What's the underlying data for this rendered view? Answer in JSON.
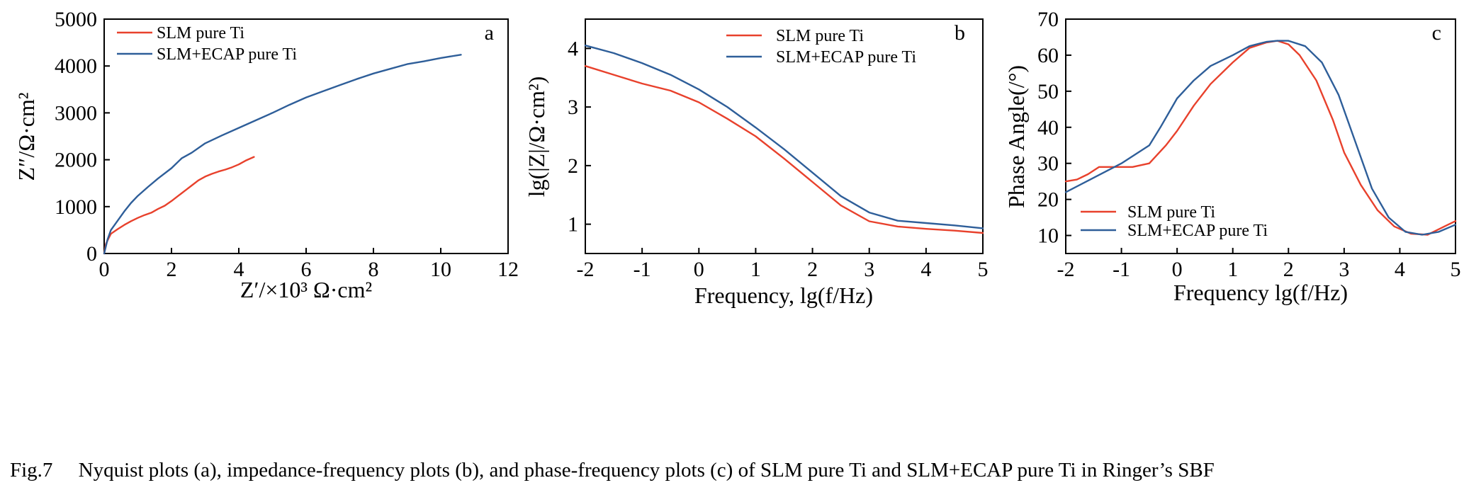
{
  "caption": "Fig.7  Nyquist plots (a), impedance-frequency plots (b), and phase-frequency plots (c) of SLM pure Ti and SLM+ECAP pure Ti in Ringer’s SBF",
  "colors": {
    "slm": "#e8412c",
    "ecap": "#2e5e99"
  },
  "chart_data": [
    {
      "type": "line",
      "panel_label": "a",
      "xlabel": "Z′/×10³ Ω·cm²",
      "ylabel": "Z″/Ω·cm²",
      "xlim": [
        0,
        12
      ],
      "ylim": [
        0,
        5000
      ],
      "xticks": [
        "0",
        "2",
        "4",
        "6",
        "8",
        "10",
        "12"
      ],
      "yticks": [
        "0",
        "1000",
        "2000",
        "3000",
        "4000",
        "5000"
      ],
      "legend": "top-left",
      "series": [
        {
          "name": "SLM pure Ti",
          "color_key": "slm",
          "x": [
            0,
            0.05,
            0.1,
            0.2,
            0.4,
            0.6,
            0.8,
            1.0,
            1.2,
            1.4,
            1.6,
            1.8,
            2.0,
            2.2,
            2.4,
            2.6,
            2.8,
            3.0,
            3.2,
            3.4,
            3.6,
            3.8,
            4.0,
            4.2,
            4.45
          ],
          "y": [
            0,
            200,
            280,
            420,
            520,
            610,
            690,
            760,
            820,
            870,
            950,
            1020,
            1120,
            1230,
            1340,
            1450,
            1560,
            1640,
            1700,
            1750,
            1790,
            1840,
            1900,
            1980,
            2060
          ]
        },
        {
          "name": "SLM+ECAP pure Ti",
          "color_key": "ecap",
          "x": [
            0,
            0.1,
            0.2,
            0.4,
            0.6,
            0.8,
            1.0,
            1.3,
            1.6,
            2.0,
            2.3,
            2.6,
            3.0,
            3.5,
            4.0,
            4.5,
            5.0,
            5.5,
            6.0,
            6.5,
            7.0,
            7.5,
            8.0,
            8.5,
            9.0,
            9.5,
            10.0,
            10.6
          ],
          "y": [
            0,
            300,
            500,
            700,
            900,
            1080,
            1230,
            1420,
            1600,
            1820,
            2030,
            2150,
            2350,
            2520,
            2680,
            2840,
            3000,
            3170,
            3330,
            3460,
            3590,
            3720,
            3840,
            3940,
            4040,
            4100,
            4170,
            4240
          ]
        }
      ]
    },
    {
      "type": "line",
      "panel_label": "b",
      "xlabel": "Frequency, lg(f/Hz)",
      "ylabel": "lg(|Z|/Ω·cm²)",
      "xlim": [
        -2,
        5
      ],
      "ylim": [
        0.5,
        4.5
      ],
      "xticks": [
        "-2",
        "-1",
        "0",
        "1",
        "2",
        "3",
        "4",
        "5"
      ],
      "yticks": [
        "1",
        "2",
        "3",
        "4"
      ],
      "legend": "top-right",
      "series": [
        {
          "name": "SLM pure Ti",
          "color_key": "slm",
          "x": [
            -2,
            -1.5,
            -1,
            -0.5,
            0,
            0.5,
            1,
            1.5,
            2,
            2.5,
            3,
            3.5,
            4,
            4.5,
            5
          ],
          "y": [
            3.7,
            3.55,
            3.4,
            3.28,
            3.08,
            2.8,
            2.5,
            2.12,
            1.72,
            1.32,
            1.05,
            0.96,
            0.92,
            0.89,
            0.85
          ]
        },
        {
          "name": "SLM+ECAP pure Ti",
          "color_key": "ecap",
          "x": [
            -2,
            -1.5,
            -1,
            -0.5,
            0,
            0.5,
            1,
            1.5,
            2,
            2.5,
            3,
            3.5,
            4,
            4.5,
            5
          ],
          "y": [
            4.05,
            3.92,
            3.75,
            3.55,
            3.3,
            3.0,
            2.65,
            2.28,
            1.88,
            1.48,
            1.2,
            1.06,
            1.02,
            0.98,
            0.93
          ]
        }
      ]
    },
    {
      "type": "line",
      "panel_label": "c",
      "xlabel": "Frequency lg(f/Hz)",
      "ylabel": "Phase Angle(/°)",
      "xlim": [
        -2,
        5
      ],
      "ylim": [
        5,
        70
      ],
      "xticks": [
        "-2",
        "-1",
        "0",
        "1",
        "2",
        "3",
        "4",
        "5"
      ],
      "yticks": [
        "10",
        "20",
        "30",
        "40",
        "50",
        "60",
        "70"
      ],
      "legend": "bottom-left",
      "series": [
        {
          "name": "SLM pure Ti",
          "color_key": "slm",
          "x": [
            -2,
            -1.8,
            -1.6,
            -1.4,
            -1.2,
            -1,
            -0.8,
            -0.5,
            -0.2,
            0,
            0.3,
            0.6,
            1,
            1.3,
            1.6,
            1.8,
            2.0,
            2.2,
            2.5,
            2.8,
            3.0,
            3.3,
            3.6,
            3.9,
            4.2,
            4.5,
            4.8,
            5.0
          ],
          "y": [
            25,
            25.5,
            27,
            29,
            29,
            29,
            29,
            30,
            35,
            39,
            46,
            52,
            58,
            62,
            63.5,
            64,
            63,
            60,
            53,
            42,
            33,
            24,
            17,
            12.5,
            10.5,
            10.2,
            12.5,
            14
          ]
        },
        {
          "name": "SLM+ECAP pure Ti",
          "color_key": "ecap",
          "x": [
            -2,
            -1.5,
            -1,
            -0.5,
            -0.3,
            0,
            0.3,
            0.6,
            1,
            1.3,
            1.6,
            1.8,
            2.0,
            2.3,
            2.6,
            2.9,
            3.2,
            3.5,
            3.8,
            4.1,
            4.4,
            4.7,
            5.0
          ],
          "y": [
            22,
            26,
            30,
            35,
            40,
            48,
            53,
            57,
            60,
            62.5,
            63.7,
            64,
            64,
            62.5,
            58,
            49,
            36,
            23,
            15,
            11,
            10.2,
            11,
            13
          ]
        }
      ]
    }
  ]
}
